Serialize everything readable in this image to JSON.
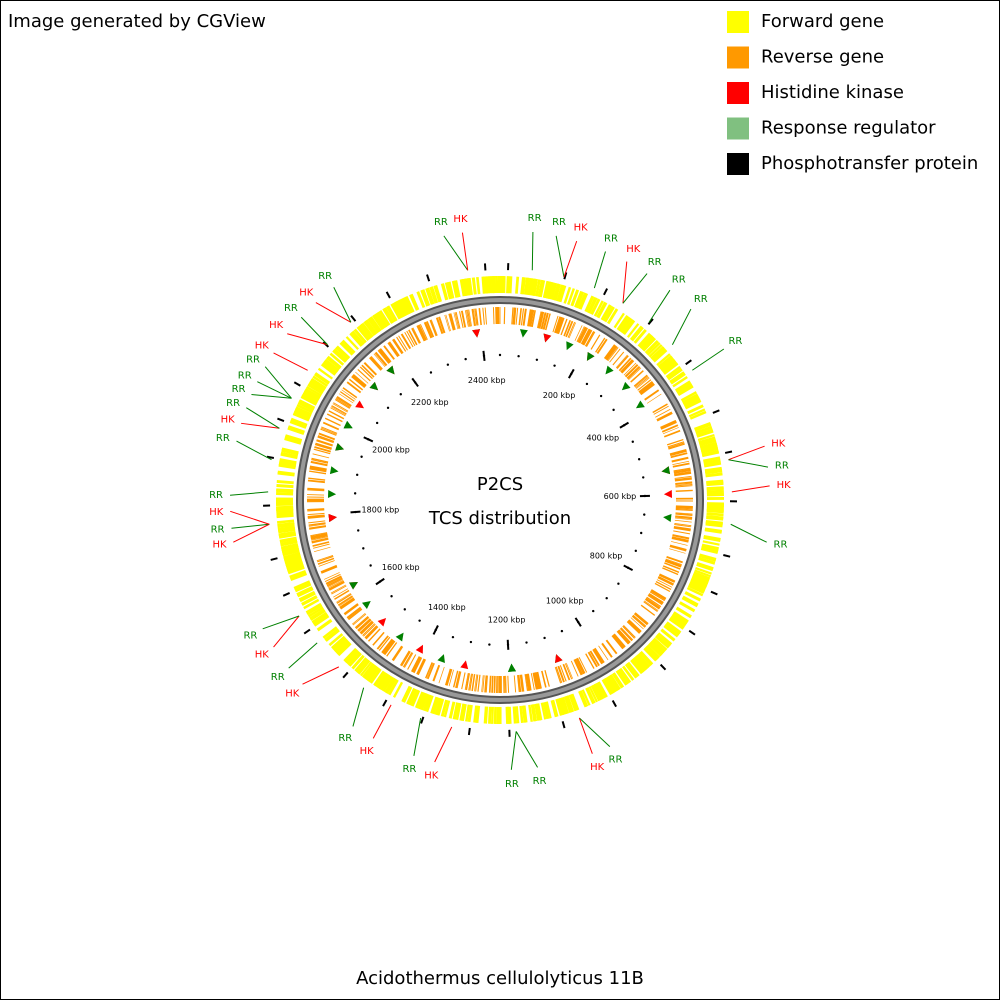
{
  "header": "Image generated by CGView",
  "legend": [
    {
      "label": "Forward gene",
      "color": "#ffff00"
    },
    {
      "label": "Reverse gene",
      "color": "#ff9900"
    },
    {
      "label": "Histidine kinase",
      "color": "#ff0000"
    },
    {
      "label": "Response regulator",
      "color": "#80c080"
    },
    {
      "label": "Phosphotransfer protein",
      "color": "#000000"
    }
  ],
  "center": {
    "title": "P2CS",
    "subtitle": "TCS distribution"
  },
  "scale_labels": [
    "200 kbp",
    "400 kbp",
    "600 kbp",
    "800 kbp",
    "1000 kbp",
    "1200 kbp",
    "1400 kbp",
    "1600 kbp",
    "1800 kbp",
    "2000 kbp",
    "2200 kbp",
    "2400 kbp"
  ],
  "feature_labels": [
    "RR",
    "HK",
    "RR",
    "RR",
    "HK",
    "RR",
    "HK",
    "RR",
    "RR",
    "RR",
    "RR",
    "HK",
    "RR",
    "HK",
    "RR",
    "RR",
    "HK",
    "RR",
    "RR",
    "HK",
    "RR",
    "HK",
    "RR",
    "HK",
    "RR",
    "HK",
    "RR",
    "HK",
    "RR",
    "HK",
    "RR",
    "RR",
    "HK",
    "RR",
    "RR",
    "RR",
    "RR",
    "HK",
    "HK",
    "RR",
    "HK",
    "RR"
  ],
  "footer": "Acidothermus cellulolyticus 11B"
}
